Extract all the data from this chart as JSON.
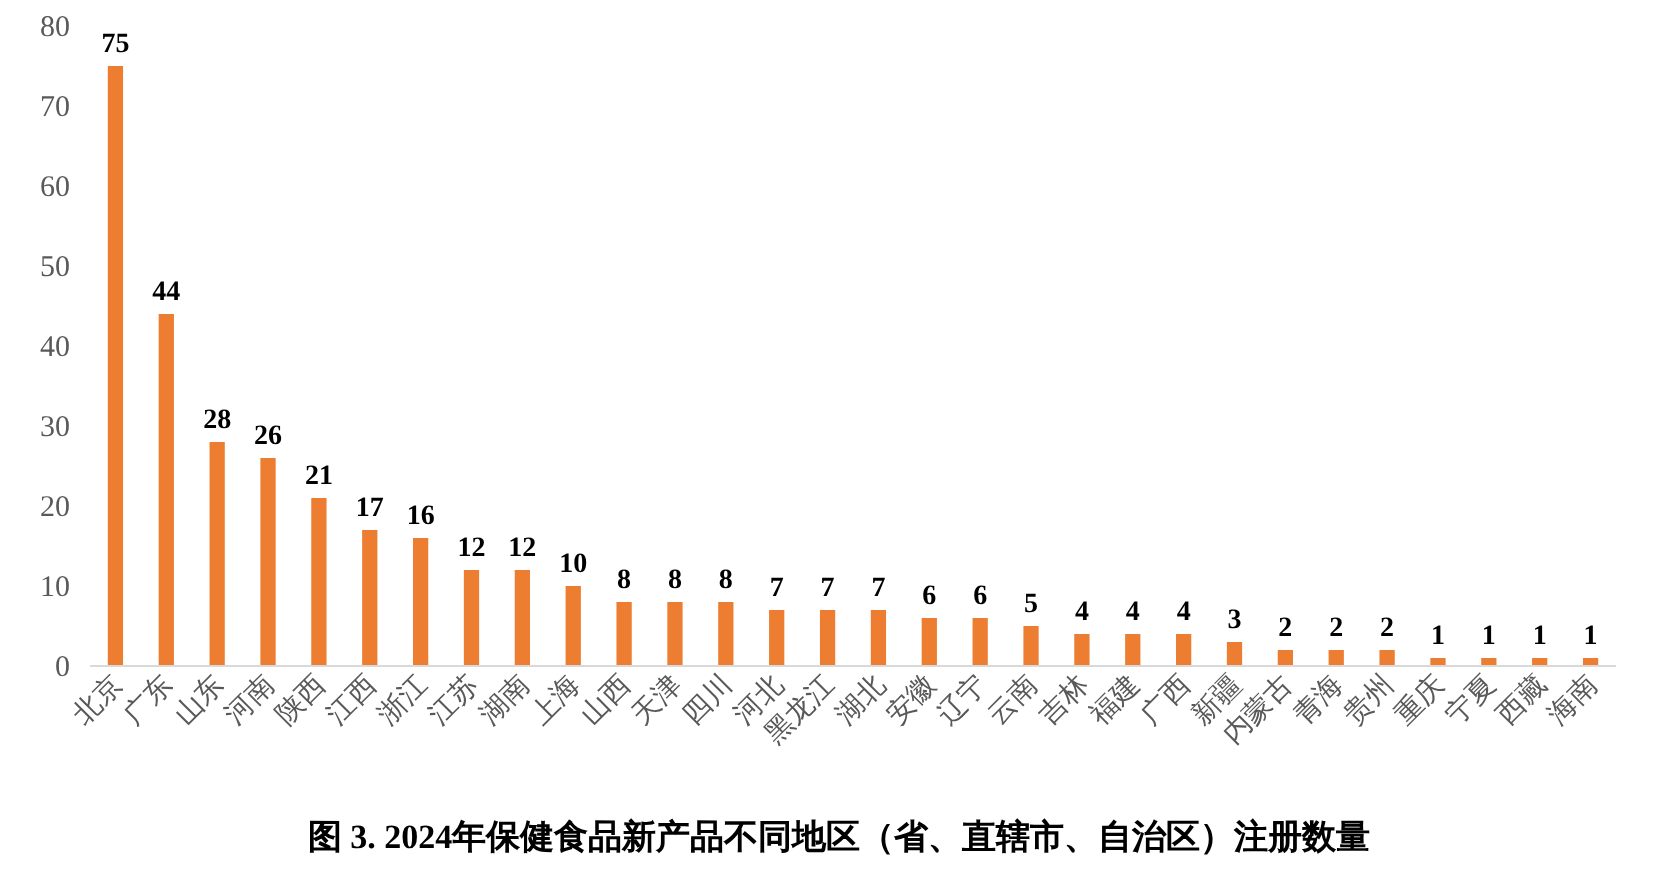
{
  "chart_data": {
    "type": "bar",
    "title": "图 3. 2024年保健食品新产品不同地区（省、直辖市、自治区）注册数量",
    "categories": [
      "北京",
      "广东",
      "山东",
      "河南",
      "陕西",
      "江西",
      "浙江",
      "江苏",
      "湖南",
      "上海",
      "山西",
      "天津",
      "四川",
      "河北",
      "黑龙江",
      "湖北",
      "安徽",
      "辽宁",
      "云南",
      "吉林",
      "福建",
      "广西",
      "新疆",
      "内蒙古",
      "青海",
      "贵州",
      "重庆",
      "宁夏",
      "西藏",
      "海南"
    ],
    "values": [
      75,
      44,
      28,
      26,
      21,
      17,
      16,
      12,
      12,
      10,
      8,
      8,
      8,
      7,
      7,
      7,
      6,
      6,
      5,
      4,
      4,
      4,
      3,
      2,
      2,
      2,
      1,
      1,
      1,
      1
    ],
    "color": "#ed7d31",
    "ylim": [
      0,
      80
    ],
    "yticks": [
      0,
      10,
      20,
      30,
      40,
      50,
      60,
      70,
      80
    ],
    "data_labels": true
  }
}
